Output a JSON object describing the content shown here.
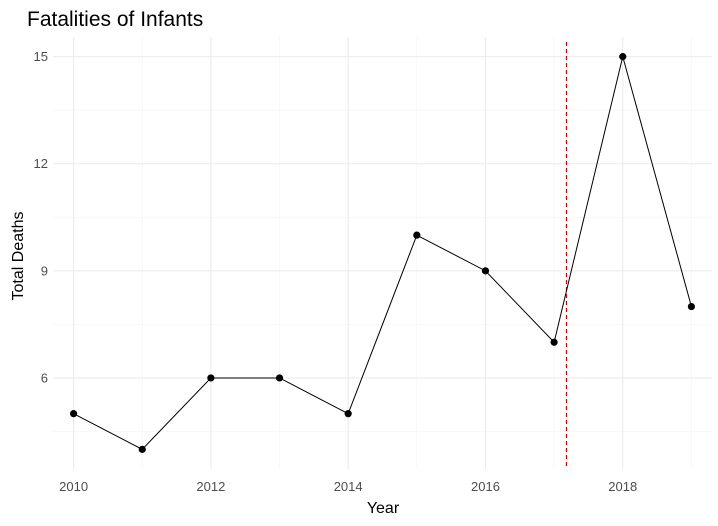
{
  "chart_data": {
    "type": "line",
    "title": "Fatalities of Infants",
    "xlabel": "Year",
    "ylabel": "Total Deaths",
    "x": [
      2010,
      2011,
      2012,
      2013,
      2014,
      2015,
      2016,
      2017,
      2018,
      2019
    ],
    "series": [
      {
        "values": [
          5,
          4,
          6,
          6,
          5,
          10,
          9,
          7,
          15,
          8
        ],
        "color": "#000000"
      }
    ],
    "xlim": [
      2009.7,
      2019.3
    ],
    "ylim": [
      3.45,
      15.55
    ],
    "x_ticks": [
      "2010",
      "2012",
      "2014",
      "2016",
      "2018"
    ],
    "y_ticks": [
      "6",
      "9",
      "12",
      "15"
    ],
    "reference_line": {
      "x": 2017.18,
      "color": "#cc0000",
      "style": "dashed"
    },
    "grid": true
  }
}
